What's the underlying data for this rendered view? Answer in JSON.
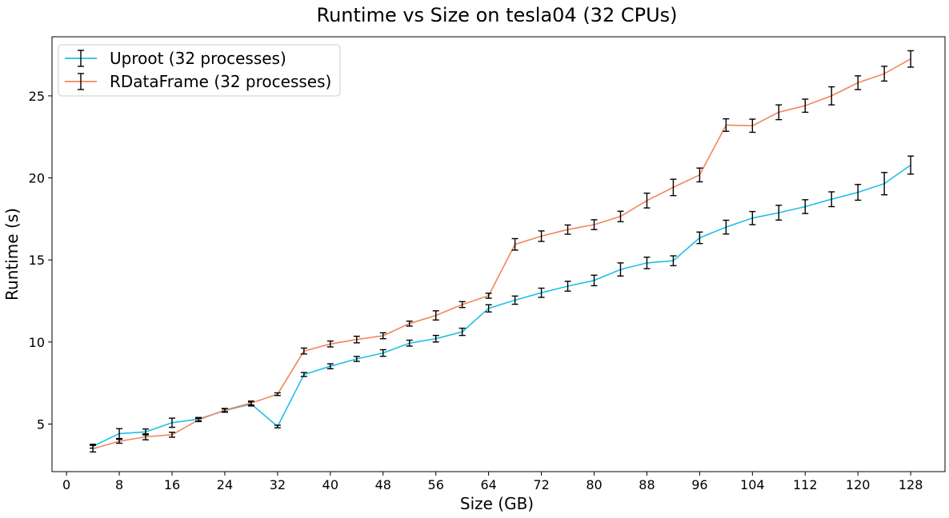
{
  "chart_data": {
    "type": "line",
    "title": "Runtime vs Size on tesla04 (32 CPUs)",
    "xlabel": "Size (GB)",
    "ylabel": "Runtime (s)",
    "xlim": [
      -2.2,
      133.2
    ],
    "ylim": [
      2.1,
      28.6
    ],
    "xticks": [
      0,
      8,
      16,
      24,
      32,
      40,
      48,
      56,
      64,
      72,
      80,
      88,
      96,
      104,
      112,
      120,
      128
    ],
    "yticks": [
      5,
      10,
      15,
      20,
      25
    ],
    "grid": false,
    "legend_position": "upper-left",
    "x": [
      4,
      8,
      12,
      16,
      20,
      24,
      28,
      32,
      36,
      40,
      44,
      48,
      52,
      56,
      60,
      64,
      68,
      72,
      76,
      80,
      84,
      88,
      92,
      96,
      100,
      104,
      108,
      112,
      116,
      120,
      124,
      128
    ],
    "series": [
      {
        "name": "Uproot (32 processes)",
        "color": "#1ec0ea",
        "values": [
          3.65,
          4.42,
          4.52,
          5.08,
          5.3,
          5.82,
          6.22,
          4.85,
          8.02,
          8.52,
          8.97,
          9.33,
          9.93,
          10.2,
          10.62,
          12.05,
          12.55,
          13.0,
          13.4,
          13.75,
          14.42,
          14.82,
          14.95,
          16.35,
          17.0,
          17.55,
          17.88,
          18.25,
          18.7,
          19.12,
          19.65,
          20.78
        ],
        "errors": [
          0.12,
          0.3,
          0.18,
          0.28,
          0.1,
          0.1,
          0.12,
          0.08,
          0.12,
          0.15,
          0.15,
          0.2,
          0.18,
          0.2,
          0.22,
          0.22,
          0.25,
          0.28,
          0.3,
          0.32,
          0.4,
          0.35,
          0.3,
          0.35,
          0.42,
          0.4,
          0.45,
          0.42,
          0.45,
          0.48,
          0.68,
          0.55
        ]
      },
      {
        "name": "RDataFrame (32 processes)",
        "color": "#f4845c",
        "values": [
          3.5,
          3.95,
          4.22,
          4.35,
          5.25,
          5.85,
          6.28,
          6.82,
          9.45,
          9.88,
          10.15,
          10.38,
          11.12,
          11.62,
          12.28,
          12.82,
          15.95,
          16.45,
          16.85,
          17.15,
          17.65,
          18.62,
          19.42,
          20.18,
          23.22,
          23.18,
          24.0,
          24.4,
          25.0,
          25.8,
          26.35,
          27.25
        ],
        "errors": [
          0.2,
          0.12,
          0.18,
          0.15,
          0.1,
          0.1,
          0.12,
          0.08,
          0.18,
          0.18,
          0.2,
          0.18,
          0.15,
          0.28,
          0.18,
          0.15,
          0.35,
          0.32,
          0.28,
          0.3,
          0.32,
          0.45,
          0.5,
          0.42,
          0.38,
          0.4,
          0.45,
          0.4,
          0.55,
          0.42,
          0.45,
          0.5
        ]
      }
    ]
  }
}
